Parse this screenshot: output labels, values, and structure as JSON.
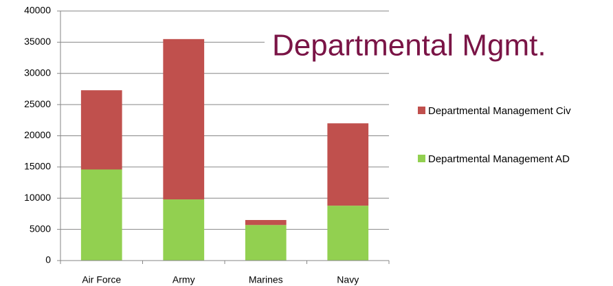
{
  "chart_data": {
    "type": "bar",
    "stacked": true,
    "title": "Departmental Mgmt.",
    "title_color": "#7a1446",
    "categories": [
      "Air Force",
      "Army",
      "Marines",
      "Navy"
    ],
    "series": [
      {
        "name": "Departmental Management AD",
        "color": "#92d050",
        "values": [
          14600,
          9800,
          5700,
          8800
        ]
      },
      {
        "name": "Departmental Management Civ",
        "color": "#c0504d",
        "values": [
          12700,
          25700,
          800,
          13200
        ]
      }
    ],
    "ylim": [
      0,
      40000
    ],
    "yticks": [
      0,
      5000,
      10000,
      15000,
      20000,
      25000,
      30000,
      35000,
      40000
    ],
    "grid": true,
    "legend": "right"
  }
}
